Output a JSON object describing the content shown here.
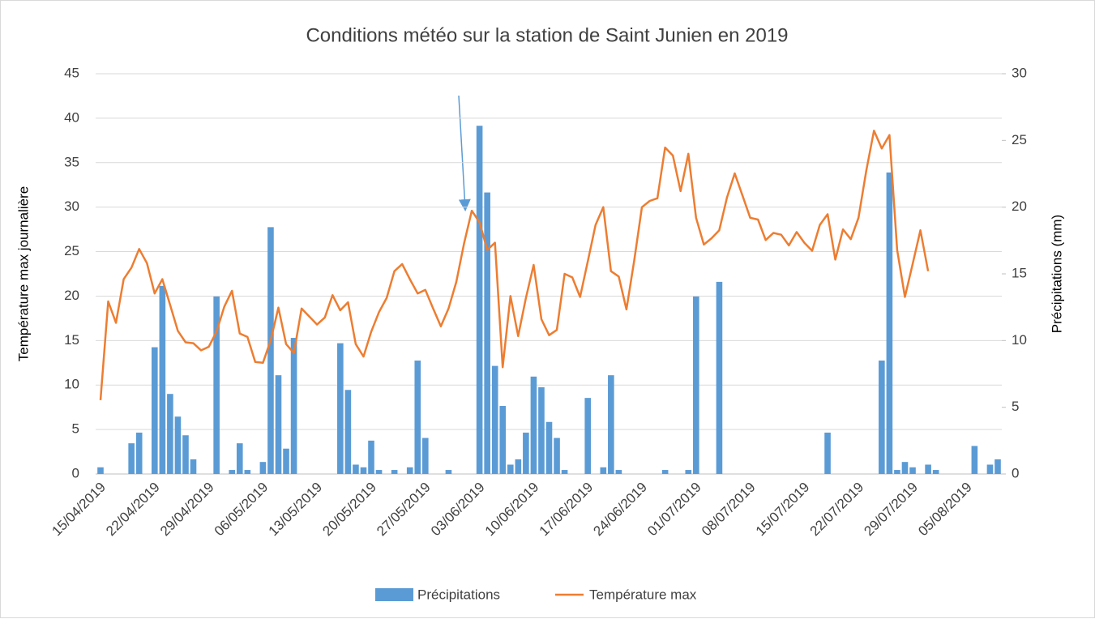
{
  "chart_data": {
    "type": "bar+line",
    "title": "Conditions météo sur la station de Saint Junien en 2019",
    "y_label": "Température max journalière",
    "y2_label": "Précipitations (mm)",
    "categories": [
      "15/04/2019",
      null,
      null,
      null,
      null,
      null,
      null,
      "22/04/2019",
      null,
      null,
      null,
      null,
      null,
      null,
      "29/04/2019",
      null,
      null,
      null,
      null,
      null,
      null,
      "06/05/2019",
      null,
      null,
      null,
      null,
      null,
      null,
      "13/05/2019",
      null,
      null,
      null,
      null,
      null,
      null,
      "20/05/2019",
      null,
      null,
      null,
      null,
      null,
      null,
      "27/05/2019",
      null,
      null,
      null,
      null,
      null,
      null,
      "03/06/2019",
      null,
      null,
      null,
      null,
      null,
      null,
      "10/06/2019",
      null,
      null,
      null,
      null,
      null,
      null,
      "17/06/2019",
      null,
      null,
      null,
      null,
      null,
      null,
      "24/06/2019",
      null,
      null,
      null,
      null,
      null,
      null,
      "01/07/2019",
      null,
      null,
      null,
      null,
      null,
      null,
      "08/07/2019",
      null,
      null,
      null,
      null,
      null,
      null,
      "15/07/2019",
      null,
      null,
      null,
      null,
      null,
      null,
      "22/07/2019",
      null,
      null,
      null,
      null,
      null,
      null,
      "29/07/2019",
      null,
      null,
      null,
      null,
      null,
      null,
      "05/08/2019",
      null,
      null,
      null,
      null
    ],
    "series": [
      {
        "name": "Précipitations",
        "type": "bar",
        "axis": "y2",
        "color": "#5b9bd5",
        "values": [
          0.5,
          0,
          0,
          0,
          2.3,
          3.1,
          0,
          9.5,
          14.1,
          6.0,
          4.3,
          2.9,
          1.1,
          0,
          0,
          13.3,
          0,
          0.3,
          2.3,
          0.3,
          0,
          0.9,
          18.5,
          7.4,
          1.9,
          10.2,
          0,
          0,
          0,
          0,
          0,
          9.8,
          6.3,
          0.7,
          0.5,
          2.5,
          0.3,
          0,
          0.3,
          0,
          0.5,
          8.5,
          2.7,
          0,
          0,
          0.3,
          0,
          0,
          0,
          26.1,
          21.1,
          8.1,
          5.1,
          0.7,
          1.1,
          3.1,
          7.3,
          6.5,
          3.9,
          2.7,
          0.3,
          0,
          0,
          5.7,
          0,
          0.5,
          7.4,
          0.3,
          0,
          0,
          0,
          0,
          0,
          0.3,
          0,
          0,
          0.3,
          13.3,
          0,
          0,
          14.4,
          0,
          0,
          0,
          0,
          0,
          0,
          0,
          0,
          0,
          0,
          0,
          0,
          0,
          3.1,
          0,
          0,
          0,
          0,
          0,
          0,
          8.5,
          22.6,
          0.3,
          0.9,
          0.5,
          0,
          0.7,
          0.3,
          0,
          0,
          0,
          0,
          2.1,
          0,
          0.7,
          1.1
        ]
      },
      {
        "name": "Température max",
        "type": "line",
        "axis": "y",
        "color": "#ed7d31",
        "values": [
          8.3,
          19.4,
          17.0,
          21.9,
          23.2,
          25.3,
          23.7,
          20.3,
          21.9,
          19.0,
          16.1,
          14.8,
          14.7,
          13.9,
          14.3,
          16.0,
          18.8,
          20.6,
          15.8,
          15.4,
          12.6,
          12.5,
          15.0,
          18.7,
          14.6,
          13.6,
          18.6,
          17.7,
          16.8,
          17.6,
          20.1,
          18.4,
          19.3,
          14.6,
          13.2,
          16.0,
          18.2,
          19.8,
          22.8,
          23.6,
          21.9,
          20.3,
          20.7,
          18.6,
          16.6,
          18.6,
          21.6,
          25.9,
          29.6,
          28.3,
          25.2,
          26.0,
          12.0,
          20.0,
          15.5,
          19.8,
          23.5,
          17.4,
          15.6,
          16.2,
          22.5,
          22.1,
          19.9,
          23.9,
          28.0,
          30.0,
          22.8,
          22.2,
          18.5,
          24.0,
          30.0,
          30.7,
          31.0,
          36.7,
          35.8,
          31.8,
          36.0,
          28.8,
          25.8,
          26.5,
          27.4,
          31.1,
          33.8,
          31.3,
          28.8,
          28.6,
          26.3,
          27.1,
          26.9,
          25.7,
          27.2,
          26.0,
          25.1,
          28.0,
          29.2,
          24.1,
          27.5,
          26.4,
          28.8,
          34.1,
          38.6,
          36.6,
          38.1,
          25.2,
          19.9,
          23.6,
          27.4,
          22.8,
          null,
          null,
          null,
          null,
          null,
          null,
          null,
          null,
          null
        ]
      }
    ],
    "ylim": [
      0,
      45
    ],
    "yticks": [
      0,
      5,
      10,
      15,
      20,
      25,
      30,
      35,
      40,
      45
    ],
    "y2lim": [
      0,
      30
    ],
    "y2ticks": [
      0,
      5,
      10,
      15,
      20,
      25,
      30
    ],
    "grid": true,
    "legend": "bottom"
  }
}
